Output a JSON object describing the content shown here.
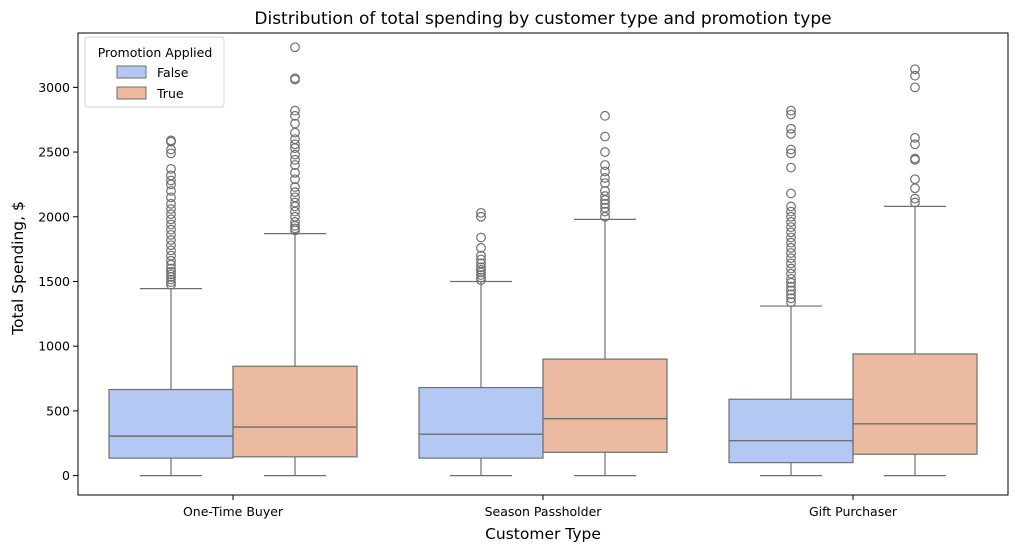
{
  "chart_data": {
    "type": "box",
    "title": "Distribution of total spending by customer type and promotion type",
    "xlabel": "Customer Type",
    "ylabel": "Total Spending, $",
    "ylim": [
      -150,
      3420
    ],
    "yticks": [
      0,
      500,
      1000,
      1500,
      2000,
      2500,
      3000
    ],
    "categories": [
      "One-Time Buyer",
      "Season Passholder",
      "Gift Purchaser"
    ],
    "grid": false,
    "legend": {
      "title": "Promotion Applied",
      "placement": "upper-left",
      "entries": [
        "False",
        "True"
      ]
    },
    "series": [
      {
        "name": "False",
        "color": "#b4c8f4",
        "boxes": [
          {
            "whisker_low": 0,
            "q1": 135,
            "median": 305,
            "q3": 665,
            "whisker_high": 1445,
            "outliers": [
              1475,
              1495,
              1515,
              1535,
              1555,
              1575,
              1600,
              1630,
              1660,
              1700,
              1740,
              1780,
              1820,
              1860,
              1900,
              1940,
              1980,
              2020,
              2060,
              2100,
              2150,
              2200,
              2250,
              2280,
              2320,
              2370,
              2490,
              2520,
              2580,
              2590
            ]
          },
          {
            "whisker_low": 0,
            "q1": 135,
            "median": 320,
            "q3": 680,
            "whisker_high": 1500,
            "outliers": [
              1510,
              1530,
              1550,
              1570,
              1590,
              1610,
              1640,
              1670,
              1700,
              1760,
              1840,
              2000,
              2030
            ]
          },
          {
            "whisker_low": 0,
            "q1": 100,
            "median": 270,
            "q3": 590,
            "whisker_high": 1310,
            "outliers": [
              1340,
              1370,
              1400,
              1430,
              1460,
              1490,
              1520,
              1560,
              1600,
              1640,
              1680,
              1720,
              1760,
              1800,
              1840,
              1880,
              1920,
              1960,
              2000,
              2040,
              2080,
              2180,
              2380,
              2490,
              2520,
              2640,
              2680,
              2790,
              2820
            ]
          }
        ]
      },
      {
        "name": "True",
        "color": "#ecb9a1",
        "boxes": [
          {
            "whisker_low": 0,
            "q1": 145,
            "median": 375,
            "q3": 845,
            "whisker_high": 1870,
            "outliers": [
              1895,
              1910,
              1930,
              1960,
              2000,
              2040,
              2080,
              2110,
              2150,
              2190,
              2230,
              2290,
              2340,
              2400,
              2440,
              2480,
              2530,
              2560,
              2600,
              2650,
              2720,
              2780,
              2820,
              3060,
              3070,
              3310
            ]
          },
          {
            "whisker_low": 0,
            "q1": 180,
            "median": 440,
            "q3": 900,
            "whisker_high": 1980,
            "outliers": [
              2000,
              2040,
              2070,
              2100,
              2130,
              2160,
              2200,
              2260,
              2300,
              2350,
              2400,
              2500,
              2620,
              2780
            ]
          },
          {
            "whisker_low": 0,
            "q1": 165,
            "median": 400,
            "q3": 940,
            "whisker_high": 2080,
            "outliers": [
              2110,
              2140,
              2220,
              2290,
              2440,
              2450,
              2560,
              2610,
              3000,
              3090,
              3140
            ]
          }
        ]
      }
    ]
  }
}
